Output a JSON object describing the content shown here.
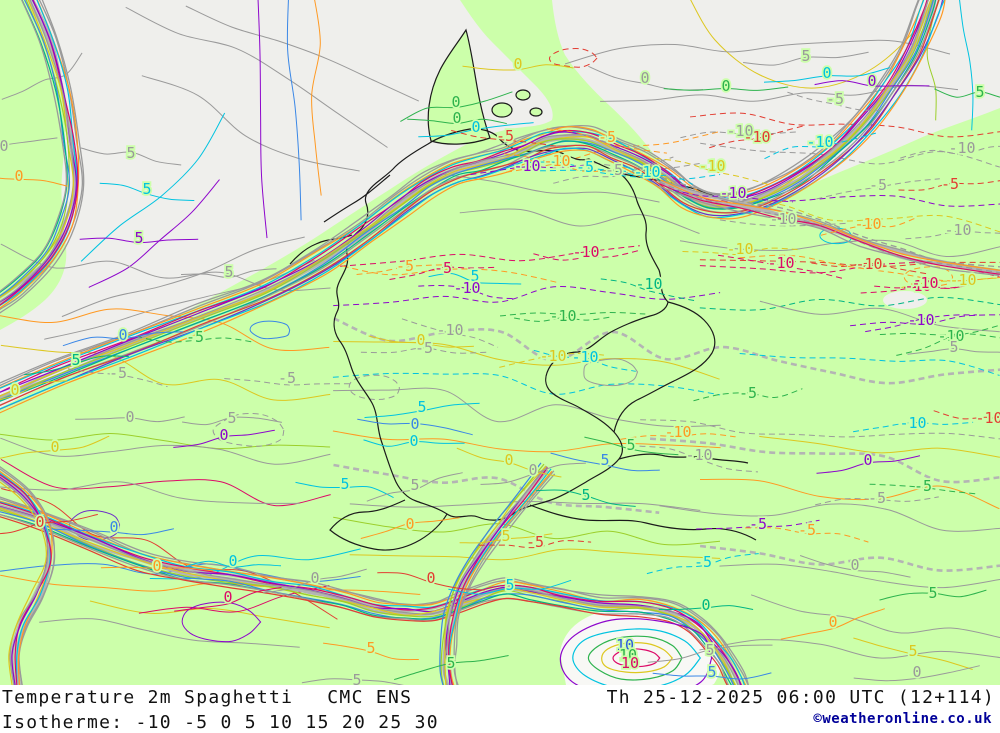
{
  "map": {
    "palette": {
      "land": "#ccffaa",
      "sea": "#efefec",
      "warm": "#f8f8f5",
      "border": "#1b1b1b",
      "grey": "#9a9a9a",
      "lgrey": "#b4b4b4",
      "orange": "#ff9922",
      "yellow": "#ddc71f",
      "cyan": "#00c3e0",
      "teal": "#00b583",
      "green": "#2db34d",
      "yg": "#9ccf2b",
      "blue": "#3a87e6",
      "royal": "#2b59e0",
      "magenta": "#dc0a68",
      "red": "#e23d32",
      "purple": "#8d06cc",
      "violet": "#6d2ec9"
    },
    "labels": [
      [
        "0",
        "grey",
        4,
        146
      ],
      [
        "0",
        "orange",
        19,
        176
      ],
      [
        "5",
        "grey",
        131,
        153
      ],
      [
        "5",
        "cyan",
        147,
        189
      ],
      [
        "5",
        "purple",
        139,
        238
      ],
      [
        "0",
        "yellow",
        518,
        64
      ],
      [
        "0",
        "green",
        456,
        102
      ],
      [
        "0",
        "green",
        457,
        118
      ],
      [
        "0",
        "cyan",
        476,
        127
      ],
      [
        "0",
        "grey",
        645,
        78
      ],
      [
        "-5",
        "red",
        505,
        136
      ],
      [
        "-5",
        "orange",
        607,
        137
      ],
      [
        "-10",
        "purple",
        527,
        166
      ],
      [
        "-10",
        "orange",
        557,
        161
      ],
      [
        "-5",
        "cyan",
        585,
        167
      ],
      [
        "-10",
        "cyan",
        647,
        172
      ],
      [
        "-5",
        "grey",
        614,
        170
      ],
      [
        "0",
        "green",
        726,
        86
      ],
      [
        "5",
        "grey",
        806,
        56
      ],
      [
        "0",
        "cyan",
        827,
        73
      ],
      [
        "0",
        "purple",
        872,
        81
      ],
      [
        "-5",
        "grey",
        835,
        99
      ],
      [
        "-10",
        "grey",
        740,
        131
      ],
      [
        "-10",
        "red",
        757,
        137
      ],
      [
        "-10",
        "cyan",
        820,
        142
      ],
      [
        "-10",
        "yellow",
        712,
        166
      ],
      [
        "-10",
        "purple",
        733,
        193
      ],
      [
        "-10",
        "grey",
        783,
        219
      ],
      [
        "-10",
        "orange",
        868,
        224
      ],
      [
        "-5",
        "grey",
        878,
        185
      ],
      [
        "-5",
        "red",
        950,
        184
      ],
      [
        "-10",
        "grey",
        958,
        230
      ],
      [
        "5",
        "green",
        980,
        92
      ],
      [
        "-10",
        "grey",
        962,
        148
      ],
      [
        "-10",
        "yellow",
        740,
        249
      ],
      [
        "-10",
        "magenta",
        918,
        286
      ],
      [
        "-10",
        "yellow",
        963,
        280
      ],
      [
        "-5",
        "orange",
        405,
        266
      ],
      [
        "-5",
        "magenta",
        443,
        268
      ],
      [
        "5",
        "cyan",
        475,
        276
      ],
      [
        "-10",
        "magenta",
        586,
        252
      ],
      [
        "-10",
        "purple",
        467,
        288
      ],
      [
        "-10",
        "green",
        563,
        316
      ],
      [
        "-10",
        "teal",
        649,
        284
      ],
      [
        "-10",
        "grey",
        450,
        330
      ],
      [
        "0",
        "yellow",
        421,
        340
      ],
      [
        "-5",
        "grey",
        424,
        348
      ],
      [
        "-10",
        "yellow",
        553,
        356
      ],
      [
        "-10",
        "cyan",
        585,
        357
      ],
      [
        "5",
        "cyan",
        422,
        407
      ],
      [
        "0",
        "blue",
        415,
        424
      ],
      [
        "0",
        "cyan",
        414,
        441
      ],
      [
        "0",
        "yellow",
        509,
        460
      ],
      [
        "0",
        "grey",
        533,
        470
      ],
      [
        "5",
        "blue",
        605,
        460
      ],
      [
        "5",
        "green",
        631,
        445
      ],
      [
        "-10",
        "magenta",
        781,
        263
      ],
      [
        "-10",
        "red",
        869,
        264
      ],
      [
        "-10",
        "magenta",
        925,
        283
      ],
      [
        "-10",
        "purple",
        921,
        320
      ],
      [
        "-10",
        "green",
        951,
        336
      ],
      [
        "5",
        "grey",
        954,
        347
      ],
      [
        "-10",
        "orange",
        678,
        432
      ],
      [
        "-5",
        "green",
        748,
        393
      ],
      [
        "-10",
        "cyan",
        913,
        423
      ],
      [
        "0",
        "purple",
        868,
        460
      ],
      [
        "-10",
        "red",
        989,
        418
      ],
      [
        "-10",
        "grey",
        699,
        455
      ],
      [
        "-5",
        "green",
        195,
        337
      ],
      [
        "-5",
        "grey",
        118,
        373
      ],
      [
        "-5",
        "grey",
        287,
        378
      ],
      [
        "5",
        "teal",
        76,
        360
      ],
      [
        "0",
        "yellow",
        15,
        390
      ],
      [
        "0",
        "grey",
        130,
        417
      ],
      [
        "5",
        "grey",
        229,
        272
      ],
      [
        "0",
        "purple",
        224,
        435
      ],
      [
        "5",
        "grey",
        232,
        418
      ],
      [
        "0",
        "yellow",
        55,
        447
      ],
      [
        "0",
        "blue",
        123,
        335
      ],
      [
        "0",
        "red",
        40,
        522
      ],
      [
        "0",
        "blue",
        114,
        527
      ],
      [
        "0",
        "orange",
        157,
        566
      ],
      [
        "0",
        "cyan",
        233,
        561
      ],
      [
        "0",
        "magenta",
        228,
        597
      ],
      [
        "0",
        "grey",
        315,
        578
      ],
      [
        "5",
        "grey",
        357,
        680
      ],
      [
        "5",
        "cyan",
        345,
        484
      ],
      [
        "5",
        "grey",
        415,
        485
      ],
      [
        "0",
        "orange",
        410,
        524
      ],
      [
        "-5",
        "red",
        535,
        542
      ],
      [
        "5",
        "yellow",
        506,
        536
      ],
      [
        "5",
        "teal",
        586,
        495
      ],
      [
        "5",
        "cyan",
        510,
        585
      ],
      [
        "0",
        "red",
        431,
        578
      ],
      [
        "5",
        "green",
        451,
        663
      ],
      [
        "5",
        "orange",
        371,
        648
      ],
      [
        "10",
        "royal",
        625,
        645
      ],
      [
        "10",
        "green",
        628,
        655
      ],
      [
        "10",
        "magenta",
        630,
        663
      ],
      [
        "0",
        "teal",
        706,
        605
      ],
      [
        "5",
        "grey",
        710,
        650
      ],
      [
        "5",
        "blue",
        712,
        672
      ],
      [
        "-5",
        "purple",
        758,
        524
      ],
      [
        "-5",
        "cyan",
        703,
        562
      ],
      [
        "-5",
        "orange",
        807,
        530
      ],
      [
        "-5",
        "grey",
        877,
        498
      ],
      [
        "-5",
        "green",
        923,
        486
      ],
      [
        "0",
        "orange",
        833,
        622
      ],
      [
        "5",
        "yellow",
        913,
        651
      ],
      [
        "5",
        "green",
        933,
        593
      ],
      [
        "0",
        "grey",
        855,
        565
      ],
      [
        "0",
        "grey",
        917,
        672
      ]
    ]
  },
  "footer": {
    "title": "Temperature 2m Spaghetti",
    "model": "CMC ENS",
    "valid_time": "Th 25-12-2025 06:00 UTC (12+114)",
    "isotherme_label": "Isotherme:",
    "isotherme_values": "-10 -5 0 5 10 15 20 25 30",
    "isotherme_values_list": [
      -10,
      -5,
      0,
      5,
      10,
      15,
      20,
      25,
      30
    ],
    "copyright": "©weatheronline.co.uk",
    "copyright_color": "#000099"
  }
}
